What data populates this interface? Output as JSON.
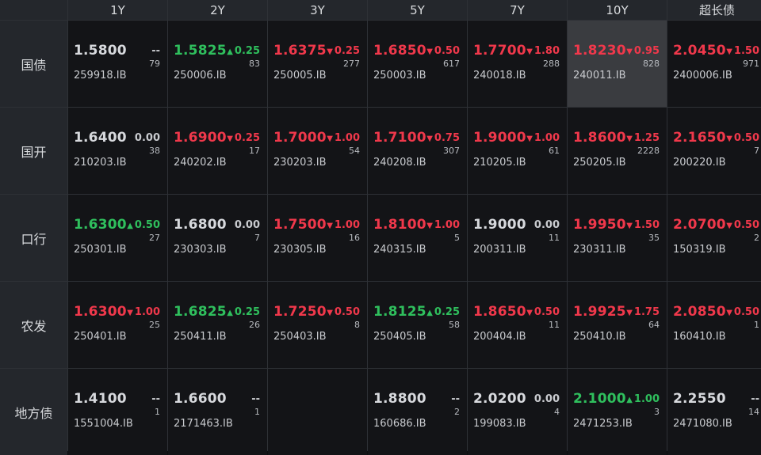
{
  "colors": {
    "up": "#f0384b",
    "down": "#2fbf5d",
    "flat": "#d7d9dd",
    "background": "#131417",
    "header": "#24272c"
  },
  "columns": [
    "1Y",
    "2Y",
    "3Y",
    "5Y",
    "7Y",
    "10Y",
    "超长债"
  ],
  "rows": [
    {
      "label": "国债",
      "cells": [
        {
          "yield": "1.5800",
          "dir": "flat",
          "change": "--",
          "count": "79",
          "code": "259918.IB"
        },
        {
          "yield": "1.5825",
          "dir": "down",
          "change": "0.25",
          "count": "83",
          "code": "250006.IB"
        },
        {
          "yield": "1.6375",
          "dir": "up",
          "change": "0.25",
          "count": "277",
          "code": "250005.IB"
        },
        {
          "yield": "1.6850",
          "dir": "up",
          "change": "0.50",
          "count": "617",
          "code": "250003.IB"
        },
        {
          "yield": "1.7700",
          "dir": "up",
          "change": "1.80",
          "count": "288",
          "code": "240018.IB"
        },
        {
          "yield": "1.8230",
          "dir": "up",
          "change": "0.95",
          "count": "828",
          "code": "240011.IB",
          "selected": true
        },
        {
          "yield": "2.0450",
          "dir": "up",
          "change": "1.50",
          "count": "971",
          "code": "2400006.IB"
        }
      ]
    },
    {
      "label": "国开",
      "cells": [
        {
          "yield": "1.6400",
          "dir": "flat",
          "change": "0.00",
          "count": "38",
          "code": "210203.IB"
        },
        {
          "yield": "1.6900",
          "dir": "up",
          "change": "0.25",
          "count": "17",
          "code": "240202.IB"
        },
        {
          "yield": "1.7000",
          "dir": "up",
          "change": "1.00",
          "count": "54",
          "code": "230203.IB"
        },
        {
          "yield": "1.7100",
          "dir": "up",
          "change": "0.75",
          "count": "307",
          "code": "240208.IB"
        },
        {
          "yield": "1.9000",
          "dir": "up",
          "change": "1.00",
          "count": "61",
          "code": "210205.IB"
        },
        {
          "yield": "1.8600",
          "dir": "up",
          "change": "1.25",
          "count": "2228",
          "code": "250205.IB"
        },
        {
          "yield": "2.1650",
          "dir": "up",
          "change": "0.50",
          "count": "7",
          "code": "200220.IB"
        }
      ]
    },
    {
      "label": "口行",
      "cells": [
        {
          "yield": "1.6300",
          "dir": "down",
          "change": "0.50",
          "count": "27",
          "code": "250301.IB"
        },
        {
          "yield": "1.6800",
          "dir": "flat",
          "change": "0.00",
          "count": "7",
          "code": "230303.IB"
        },
        {
          "yield": "1.7500",
          "dir": "up",
          "change": "1.00",
          "count": "16",
          "code": "230305.IB"
        },
        {
          "yield": "1.8100",
          "dir": "up",
          "change": "1.00",
          "count": "5",
          "code": "240315.IB"
        },
        {
          "yield": "1.9000",
          "dir": "flat",
          "change": "0.00",
          "count": "11",
          "code": "200311.IB"
        },
        {
          "yield": "1.9950",
          "dir": "up",
          "change": "1.50",
          "count": "35",
          "code": "230311.IB"
        },
        {
          "yield": "2.0700",
          "dir": "up",
          "change": "0.50",
          "count": "2",
          "code": "150319.IB"
        }
      ]
    },
    {
      "label": "农发",
      "cells": [
        {
          "yield": "1.6300",
          "dir": "up",
          "change": "1.00",
          "count": "25",
          "code": "250401.IB"
        },
        {
          "yield": "1.6825",
          "dir": "down",
          "change": "0.25",
          "count": "26",
          "code": "250411.IB"
        },
        {
          "yield": "1.7250",
          "dir": "up",
          "change": "0.50",
          "count": "8",
          "code": "250403.IB"
        },
        {
          "yield": "1.8125",
          "dir": "down",
          "change": "0.25",
          "count": "58",
          "code": "250405.IB"
        },
        {
          "yield": "1.8650",
          "dir": "up",
          "change": "0.50",
          "count": "11",
          "code": "200404.IB"
        },
        {
          "yield": "1.9925",
          "dir": "up",
          "change": "1.75",
          "count": "64",
          "code": "250410.IB"
        },
        {
          "yield": "2.0850",
          "dir": "up",
          "change": "0.50",
          "count": "1",
          "code": "160410.IB"
        }
      ]
    },
    {
      "label": "地方债",
      "cells": [
        {
          "yield": "1.4100",
          "dir": "flat",
          "change": "--",
          "count": "1",
          "code": "1551004.IB"
        },
        {
          "yield": "1.6600",
          "dir": "flat",
          "change": "--",
          "count": "1",
          "code": "2171463.IB"
        },
        null,
        {
          "yield": "1.8800",
          "dir": "flat",
          "change": "--",
          "count": "2",
          "code": "160686.IB"
        },
        {
          "yield": "2.0200",
          "dir": "flat",
          "change": "0.00",
          "count": "4",
          "code": "199083.IB"
        },
        {
          "yield": "2.1000",
          "dir": "down",
          "change": "1.00",
          "count": "3",
          "code": "2471253.IB"
        },
        {
          "yield": "2.2550",
          "dir": "flat",
          "change": "--",
          "count": "14",
          "code": "2471080.IB"
        }
      ]
    }
  ]
}
